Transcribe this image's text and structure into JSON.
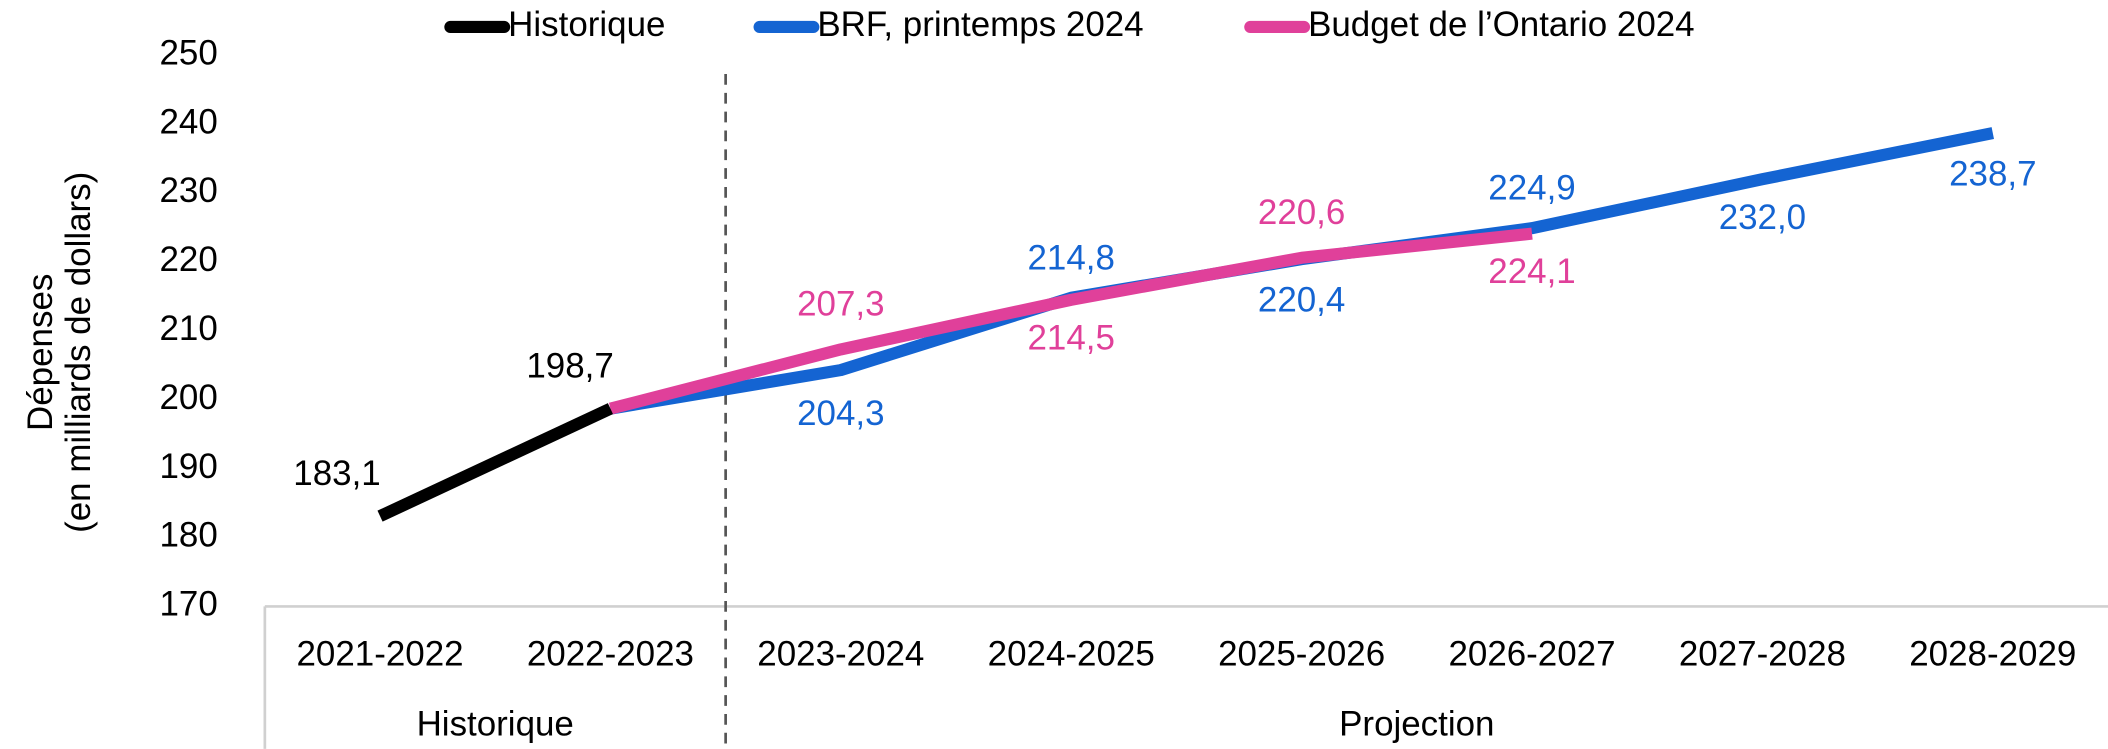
{
  "chart_data": {
    "type": "line",
    "y_label": [
      "Dépenses",
      "(en milliards de dollars)"
    ],
    "categories": [
      "2021-2022",
      "2022-2023",
      "2023-2024",
      "2024-2025",
      "2025-2026",
      "2026-2027",
      "2027-2028",
      "2028-2029"
    ],
    "groups": [
      {
        "label": "Historique",
        "span": 2
      },
      {
        "label": "Projection",
        "span": 6
      }
    ],
    "series": [
      {
        "name": "Historique",
        "color": "#000000",
        "values": [
          183.1,
          198.7,
          null,
          null,
          null,
          null,
          null,
          null
        ],
        "value_labels": [
          "183,1",
          "198,7",
          null,
          null,
          null,
          null,
          null,
          null
        ]
      },
      {
        "name": "BRF, printemps 2024",
        "color": "#1464d2",
        "values": [
          null,
          198.7,
          204.3,
          214.8,
          220.4,
          224.9,
          232.0,
          238.7
        ],
        "value_labels": [
          null,
          null,
          "204,3",
          "214,8",
          "220,4",
          "224,9",
          "232,0",
          "238,7"
        ]
      },
      {
        "name": "Budget de l’Ontario 2024",
        "color": "#e0409a",
        "values": [
          null,
          198.7,
          207.3,
          214.5,
          220.6,
          224.1,
          null,
          null
        ],
        "value_labels": [
          null,
          null,
          "207,3",
          "214,5",
          "220,6",
          "224,1",
          null,
          null
        ]
      }
    ],
    "ylim": [
      170,
      250
    ],
    "yticks": [
      170,
      180,
      190,
      200,
      210,
      220,
      230,
      240,
      250
    ],
    "legend": "top"
  }
}
